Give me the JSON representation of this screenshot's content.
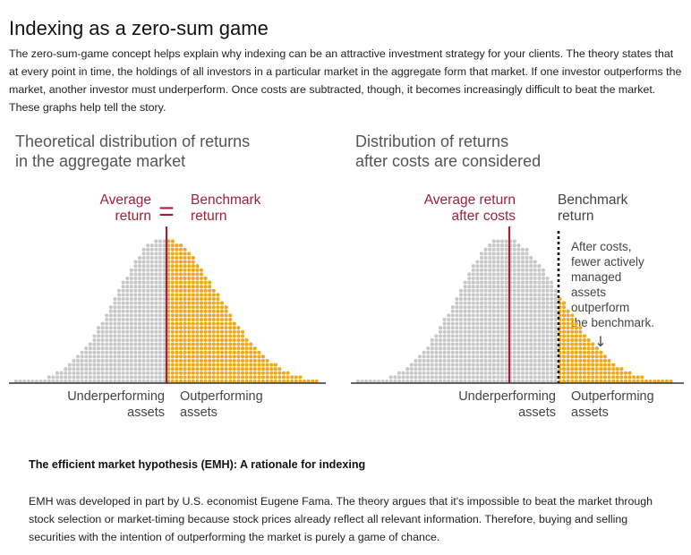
{
  "page": {
    "title": "Indexing as a zero-sum game",
    "intro": "The zero-sum-game concept helps explain why indexing can be an attractive investment strategy for your clients. The theory states that at every point in time, the holdings of all investors in a particular market in the aggregate form that market. If one investor outperforms the market, another investor must underperform. Once costs are subtracted, though, it becomes increasingly difficult to beat the market. These graphs help tell the story."
  },
  "colors": {
    "underperform_dots": "#c8c8c8",
    "outperform_dots": "#f0a818",
    "average_line": "#a3203a",
    "benchmark_text": "#a3203a",
    "axis": "#333333",
    "dashed_line": "#111111"
  },
  "chart_data": [
    {
      "type": "area",
      "title": "Theoretical distribution of returns in the aggregate market",
      "title_lines": [
        "Theoretical distribution of returns",
        "in the aggregate market"
      ],
      "average_label_lines": [
        "Average",
        "return"
      ],
      "equals_sign": "=",
      "benchmark_label_lines": [
        "Benchmark",
        "return"
      ],
      "region_labels": {
        "left": [
          "Underperforming",
          "assets"
        ],
        "right": [
          "Outperforming",
          "assets"
        ]
      },
      "distribution": "right-skewed, peak just left of the average return line",
      "split_position": "at average return = benchmark return",
      "series": [
        {
          "name": "Underperforming assets",
          "color": "grey"
        },
        {
          "name": "Outperforming assets",
          "color": "gold"
        }
      ]
    },
    {
      "type": "area",
      "title": "Distribution of returns after costs are considered",
      "title_lines": [
        "Distribution of returns",
        "after costs are considered"
      ],
      "average_label_lines": [
        "Average return",
        "after costs"
      ],
      "benchmark_label_lines": [
        "Benchmark",
        "return"
      ],
      "annotation_lines": [
        "After costs,",
        "fewer actively",
        "managed",
        "assets",
        "outperform",
        "the benchmark."
      ],
      "annotation_arrow": "↓",
      "region_labels": {
        "left": [
          "Underperforming",
          "assets"
        ],
        "right": [
          "Outperforming",
          "assets"
        ]
      },
      "distribution": "same shape shifted left by costs; benchmark shown as dashed line to the right of average",
      "series": [
        {
          "name": "Underperforming assets",
          "color": "grey"
        },
        {
          "name": "Outperforming assets",
          "color": "gold"
        }
      ]
    }
  ],
  "emh": {
    "title": "The efficient market hypothesis (EMH): A rationale for indexing",
    "body": "EMH was developed in part by U.S. economist Eugene Fama. The theory argues that it's impossible to beat the market through stock selection or market-timing because stock prices already reflect all relevant information. Therefore, buying and selling securities with the intention of outperforming the market is purely a game of chance."
  }
}
